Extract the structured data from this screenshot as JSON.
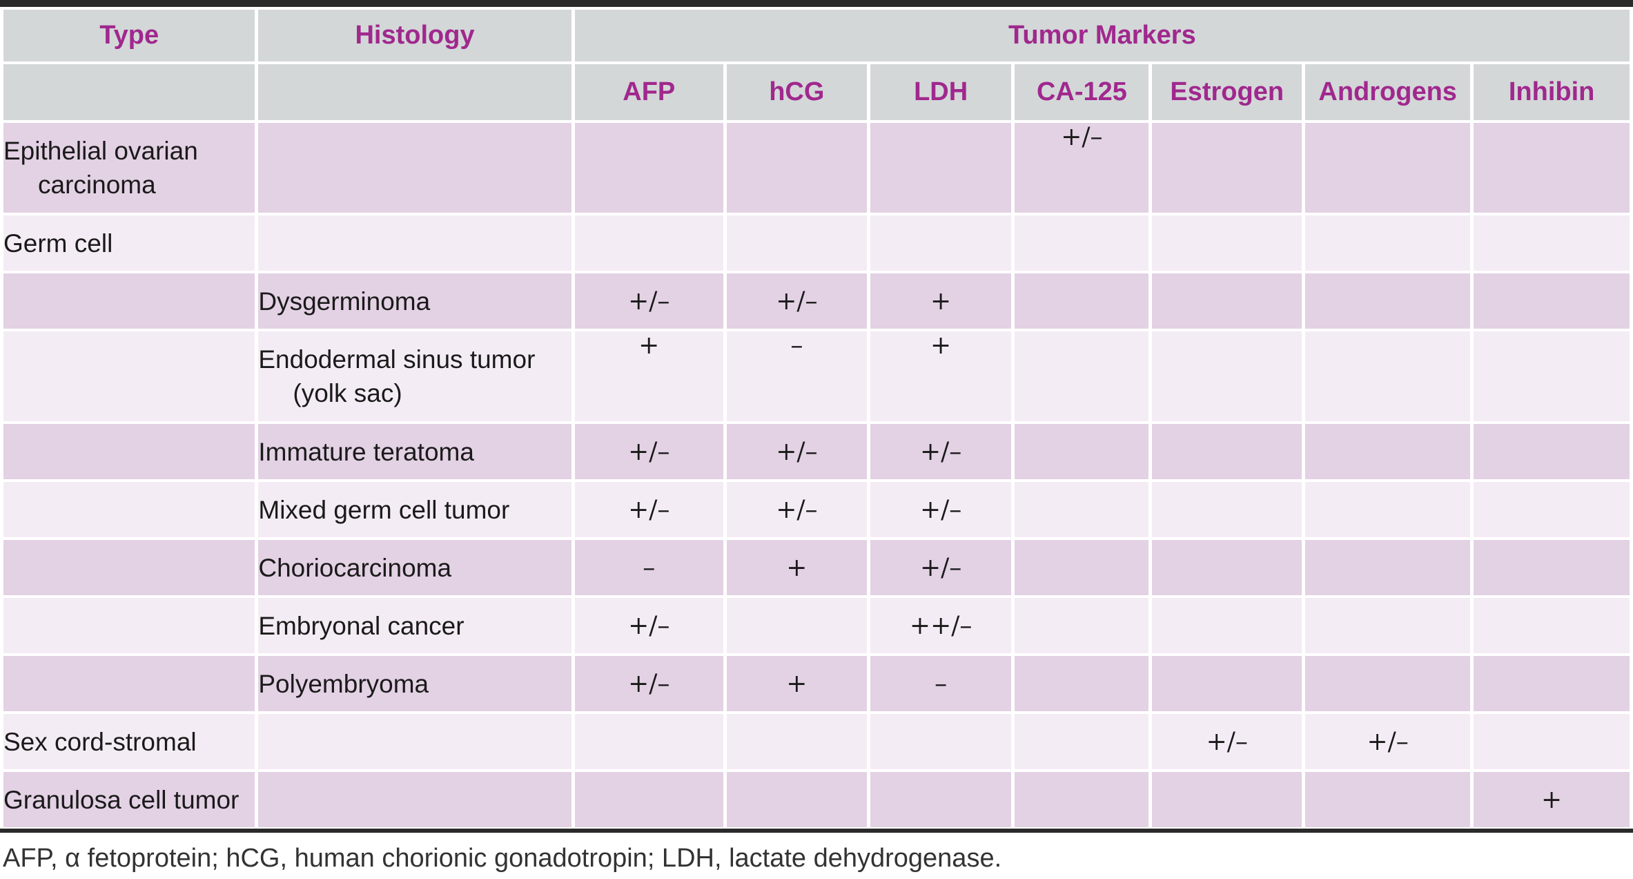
{
  "header": {
    "type": "Type",
    "histology": "Histology",
    "tumor_markers": "Tumor Markers",
    "markers": [
      "AFP",
      "hCG",
      "LDH",
      "CA-125",
      "Estrogen",
      "Androgens",
      "Inhibin"
    ]
  },
  "rows": [
    {
      "type": [
        "Epithelial ovarian",
        "carcinoma"
      ],
      "histology": [],
      "values": [
        "",
        "",
        "",
        "+/–",
        "",
        "",
        ""
      ]
    },
    {
      "type": [
        "Germ cell"
      ],
      "histology": [],
      "values": [
        "",
        "",
        "",
        "",
        "",
        "",
        ""
      ]
    },
    {
      "type": [],
      "histology": [
        "Dysgerminoma"
      ],
      "values": [
        "+/–",
        "+/–",
        "+",
        "",
        "",
        "",
        ""
      ]
    },
    {
      "type": [],
      "histology": [
        "Endodermal sinus tumor",
        "(yolk sac)"
      ],
      "values": [
        "+",
        "–",
        "+",
        "",
        "",
        "",
        ""
      ]
    },
    {
      "type": [],
      "histology": [
        "Immature teratoma"
      ],
      "values": [
        "+/–",
        "+/–",
        "+/–",
        "",
        "",
        "",
        ""
      ]
    },
    {
      "type": [],
      "histology": [
        "Mixed germ cell tumor"
      ],
      "values": [
        "+/–",
        "+/–",
        "+/–",
        "",
        "",
        "",
        ""
      ]
    },
    {
      "type": [],
      "histology": [
        "Choriocarcinoma"
      ],
      "values": [
        "–",
        "+",
        "+/–",
        "",
        "",
        "",
        ""
      ]
    },
    {
      "type": [],
      "histology": [
        "Embryonal cancer"
      ],
      "values": [
        "+/–",
        "",
        "++/–",
        "",
        "",
        "",
        ""
      ]
    },
    {
      "type": [],
      "histology": [
        "Polyembryoma"
      ],
      "values": [
        "+/–",
        "+",
        "–",
        "",
        "",
        "",
        ""
      ]
    },
    {
      "type": [
        "Sex cord-stromal"
      ],
      "histology": [],
      "values": [
        "",
        "",
        "",
        "",
        "+/–",
        "+/–",
        ""
      ]
    },
    {
      "type": [
        "Granulosa cell tumor"
      ],
      "histology": [],
      "values": [
        "",
        "",
        "",
        "",
        "",
        "",
        "+"
      ]
    }
  ],
  "footnote": "AFP, α fetoprotein; hCG, human chorionic gonadotropin; LDH, lactate dehydrogenase.",
  "colors": {
    "header_bg": "#d3d7d8",
    "header_text": "#a0288d",
    "row_shaded": "#e3d1e4",
    "row_light": "#f4ecf4",
    "rule": "#2a2a2a"
  }
}
